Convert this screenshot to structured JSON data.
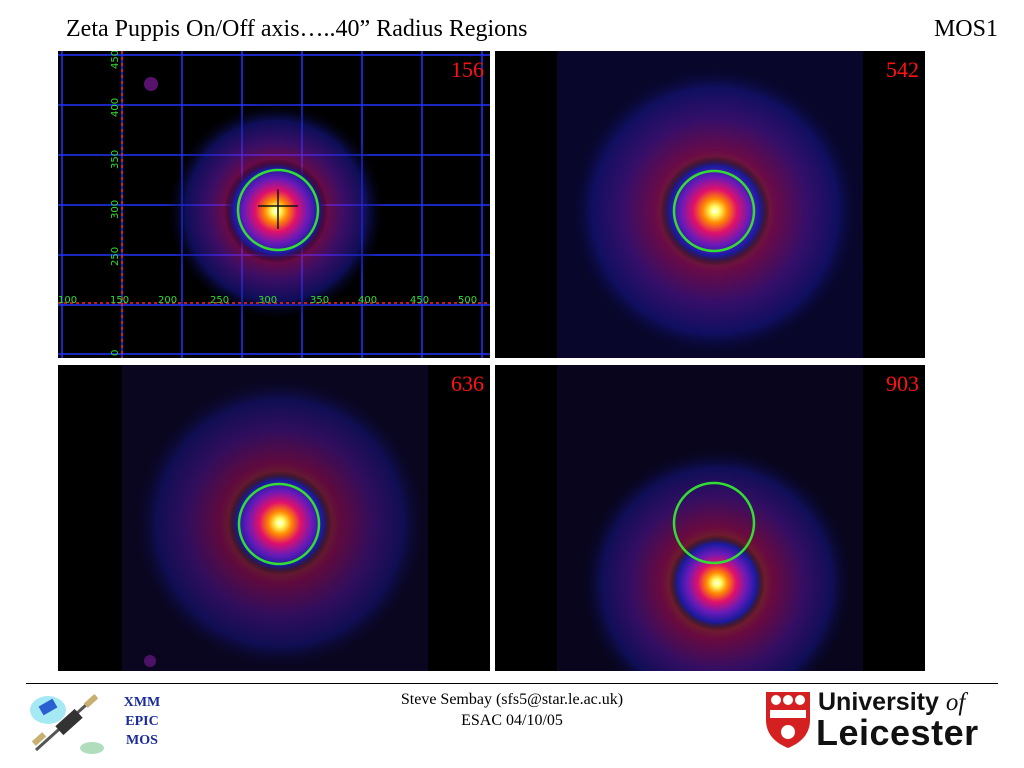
{
  "header": {
    "title": "Zeta Puppis On/Off axis…..40” Radius Regions",
    "instrument": "MOS1"
  },
  "panels": [
    {
      "label": "156"
    },
    {
      "label": "542"
    },
    {
      "label": "636"
    },
    {
      "label": "903"
    }
  ],
  "axis": {
    "x_ticks": [
      "100",
      "150",
      "200",
      "250",
      "300",
      "350",
      "400",
      "450",
      "500"
    ],
    "y_ticks": [
      "250",
      "300",
      "350",
      "400",
      "450",
      "0"
    ]
  },
  "footer": {
    "logo_left": {
      "lines": [
        "XMM",
        "EPIC",
        "MOS"
      ]
    },
    "credit_line1": "Steve Sembay (sfs5@star.le.ac.uk)",
    "credit_line2": "ESAC 04/10/05",
    "university_line1": "University",
    "university_of": "of",
    "university_line2": "Leicester"
  },
  "colors": {
    "label_red": "#ff1111",
    "circle_green": "#33dd33",
    "grid_blue": "#2233ff",
    "axis_green": "#33dd33",
    "axis_red": "#ff2222",
    "xmm_blue": "#1a2a9a"
  }
}
